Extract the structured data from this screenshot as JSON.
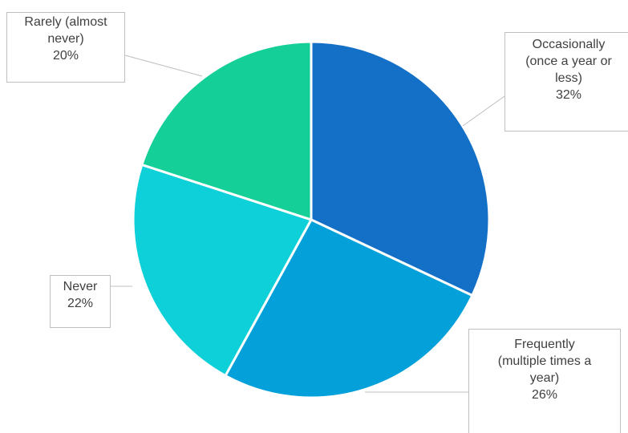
{
  "chart_data": {
    "type": "pie",
    "title": "",
    "start_angle_deg": 0,
    "direction": "clockwise",
    "slices": [
      {
        "label": "Occasionally\n(once a year or\nless)",
        "value": 32,
        "value_label": "32%",
        "color": "#1470c7"
      },
      {
        "label": "Frequently\n(multiple times a\nyear)",
        "value": 26,
        "value_label": "26%",
        "color": "#03a0d9"
      },
      {
        "label": "Never",
        "value": 22,
        "value_label": "22%",
        "color": "#0dd0d9"
      },
      {
        "label": "Rarely (almost\nnever)",
        "value": 20,
        "value_label": "20%",
        "color": "#14cf98"
      }
    ],
    "legend": "none",
    "data_labels": "callouts"
  }
}
